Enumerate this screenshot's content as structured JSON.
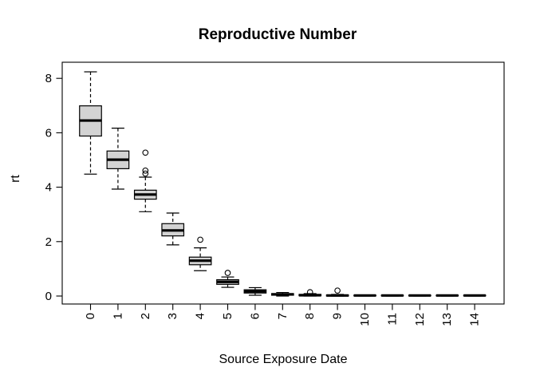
{
  "chart_data": {
    "type": "boxplot",
    "title": "Reproductive Number",
    "xlabel": "Source Exposure Date",
    "ylabel": "rt",
    "categories": [
      "0",
      "1",
      "2",
      "3",
      "4",
      "5",
      "6",
      "7",
      "8",
      "9",
      "10",
      "11",
      "12",
      "13",
      "14"
    ],
    "y_ticks": [
      0,
      2,
      4,
      6,
      8
    ],
    "ylim": [
      -0.3,
      8.6
    ],
    "grid": false,
    "legend": false,
    "box_fill": "#d3d3d3",
    "stroke_color": "#000000",
    "boxes": [
      {
        "category": "0",
        "whisker_low": 4.48,
        "q1": 5.88,
        "median": 6.45,
        "q3": 6.99,
        "whisker_high": 8.24,
        "outliers": []
      },
      {
        "category": "1",
        "whisker_low": 3.93,
        "q1": 4.68,
        "median": 5.01,
        "q3": 5.33,
        "whisker_high": 6.17,
        "outliers": []
      },
      {
        "category": "2",
        "whisker_low": 3.1,
        "q1": 3.56,
        "median": 3.73,
        "q3": 3.89,
        "whisker_high": 4.37,
        "outliers": [
          4.5,
          4.61,
          5.27
        ]
      },
      {
        "category": "3",
        "whisker_low": 1.88,
        "q1": 2.21,
        "median": 2.41,
        "q3": 2.66,
        "whisker_high": 3.05,
        "outliers": []
      },
      {
        "category": "4",
        "whisker_low": 0.93,
        "q1": 1.15,
        "median": 1.3,
        "q3": 1.43,
        "whisker_high": 1.77,
        "outliers": [
          2.07
        ]
      },
      {
        "category": "5",
        "whisker_low": 0.32,
        "q1": 0.43,
        "median": 0.52,
        "q3": 0.6,
        "whisker_high": 0.7,
        "outliers": [
          0.85
        ]
      },
      {
        "category": "6",
        "whisker_low": 0.03,
        "q1": 0.11,
        "median": 0.17,
        "q3": 0.23,
        "whisker_high": 0.31,
        "outliers": []
      },
      {
        "category": "7",
        "whisker_low": 0.0,
        "q1": 0.03,
        "median": 0.06,
        "q3": 0.09,
        "whisker_high": 0.13,
        "outliers": []
      },
      {
        "category": "8",
        "whisker_low": 0.0,
        "q1": 0.01,
        "median": 0.03,
        "q3": 0.06,
        "whisker_high": 0.09,
        "outliers": [
          0.14
        ]
      },
      {
        "category": "9",
        "whisker_low": 0.0,
        "q1": 0.0,
        "median": 0.02,
        "q3": 0.04,
        "whisker_high": 0.06,
        "outliers": [
          0.2
        ]
      },
      {
        "category": "10",
        "whisker_low": 0.0,
        "q1": 0.01,
        "median": 0.02,
        "q3": 0.03,
        "whisker_high": 0.04,
        "outliers": []
      },
      {
        "category": "11",
        "whisker_low": 0.0,
        "q1": 0.01,
        "median": 0.02,
        "q3": 0.03,
        "whisker_high": 0.04,
        "outliers": []
      },
      {
        "category": "12",
        "whisker_low": 0.0,
        "q1": 0.01,
        "median": 0.02,
        "q3": 0.03,
        "whisker_high": 0.04,
        "outliers": []
      },
      {
        "category": "13",
        "whisker_low": 0.0,
        "q1": 0.01,
        "median": 0.02,
        "q3": 0.03,
        "whisker_high": 0.04,
        "outliers": []
      },
      {
        "category": "14",
        "whisker_low": 0.0,
        "q1": 0.01,
        "median": 0.02,
        "q3": 0.03,
        "whisker_high": 0.04,
        "outliers": []
      }
    ]
  }
}
